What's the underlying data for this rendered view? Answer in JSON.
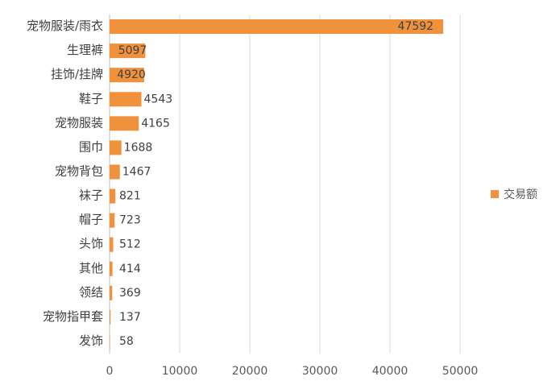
{
  "chart_data": {
    "type": "bar",
    "orientation": "horizontal",
    "categories": [
      "宠物服装/雨衣",
      "生理裤",
      "挂饰/挂牌",
      "鞋子",
      "宠物服装",
      "围巾",
      "宠物背包",
      "袜子",
      "帽子",
      "头饰",
      "其他",
      "领结",
      "宠物指甲套",
      "发饰"
    ],
    "series": [
      {
        "name": "交易额",
        "color": "#f0913c",
        "values": [
          47592,
          5097,
          4920,
          4543,
          4165,
          1688,
          1467,
          821,
          723,
          512,
          414,
          369,
          137,
          58
        ]
      }
    ],
    "xlim": [
      0,
      50000
    ],
    "xticks": [
      0,
      10000,
      20000,
      30000,
      40000,
      50000
    ],
    "grid": true,
    "legend": "right"
  }
}
